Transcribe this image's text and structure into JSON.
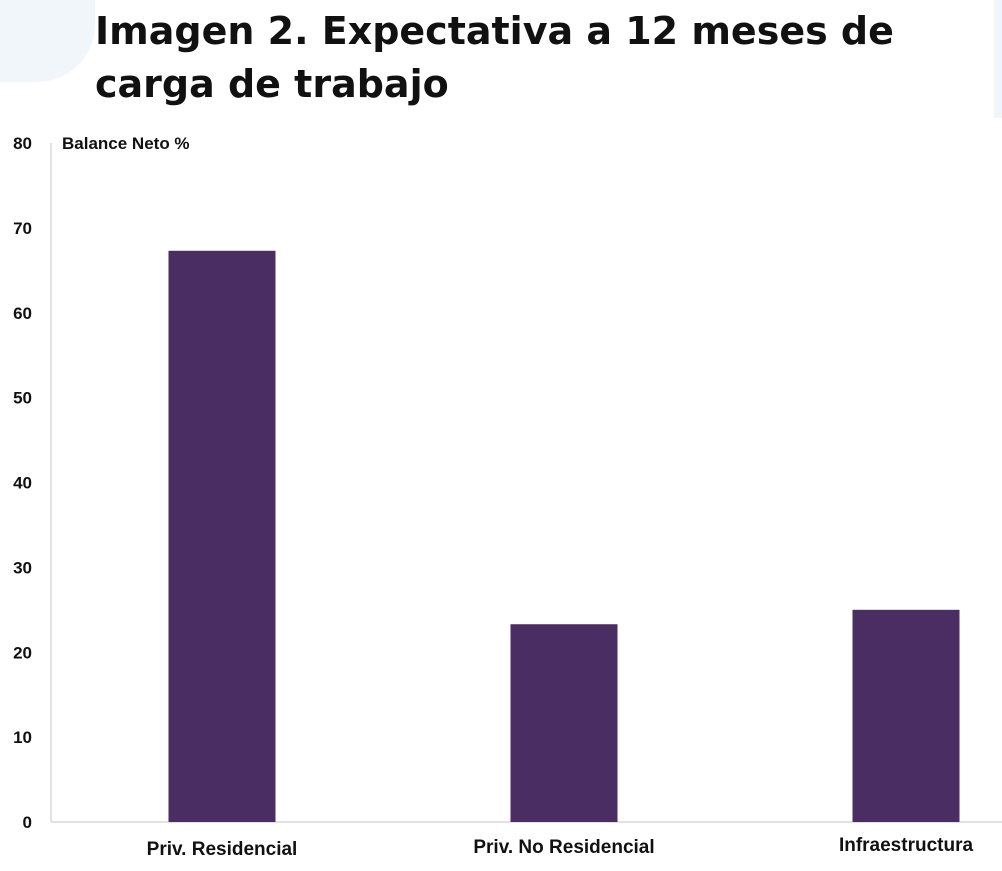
{
  "title": "Imagen 2. Expectativa a 12 meses de carga de trabajo",
  "chart_data": {
    "type": "bar",
    "title": "Imagen 2. Expectativa a 12 meses de carga de trabajo",
    "ylabel": "Balance Neto %",
    "xlabel": "",
    "categories": [
      "Priv. Residencial",
      "Priv. No Residencial",
      "Infraestructura"
    ],
    "values": [
      67.3,
      23.3,
      25
    ],
    "ylim": [
      0,
      80
    ],
    "yticks": [
      0,
      10,
      20,
      30,
      40,
      50,
      60,
      70,
      80
    ],
    "grid": false,
    "legend": "none",
    "bar_color": "#4a2d62"
  }
}
